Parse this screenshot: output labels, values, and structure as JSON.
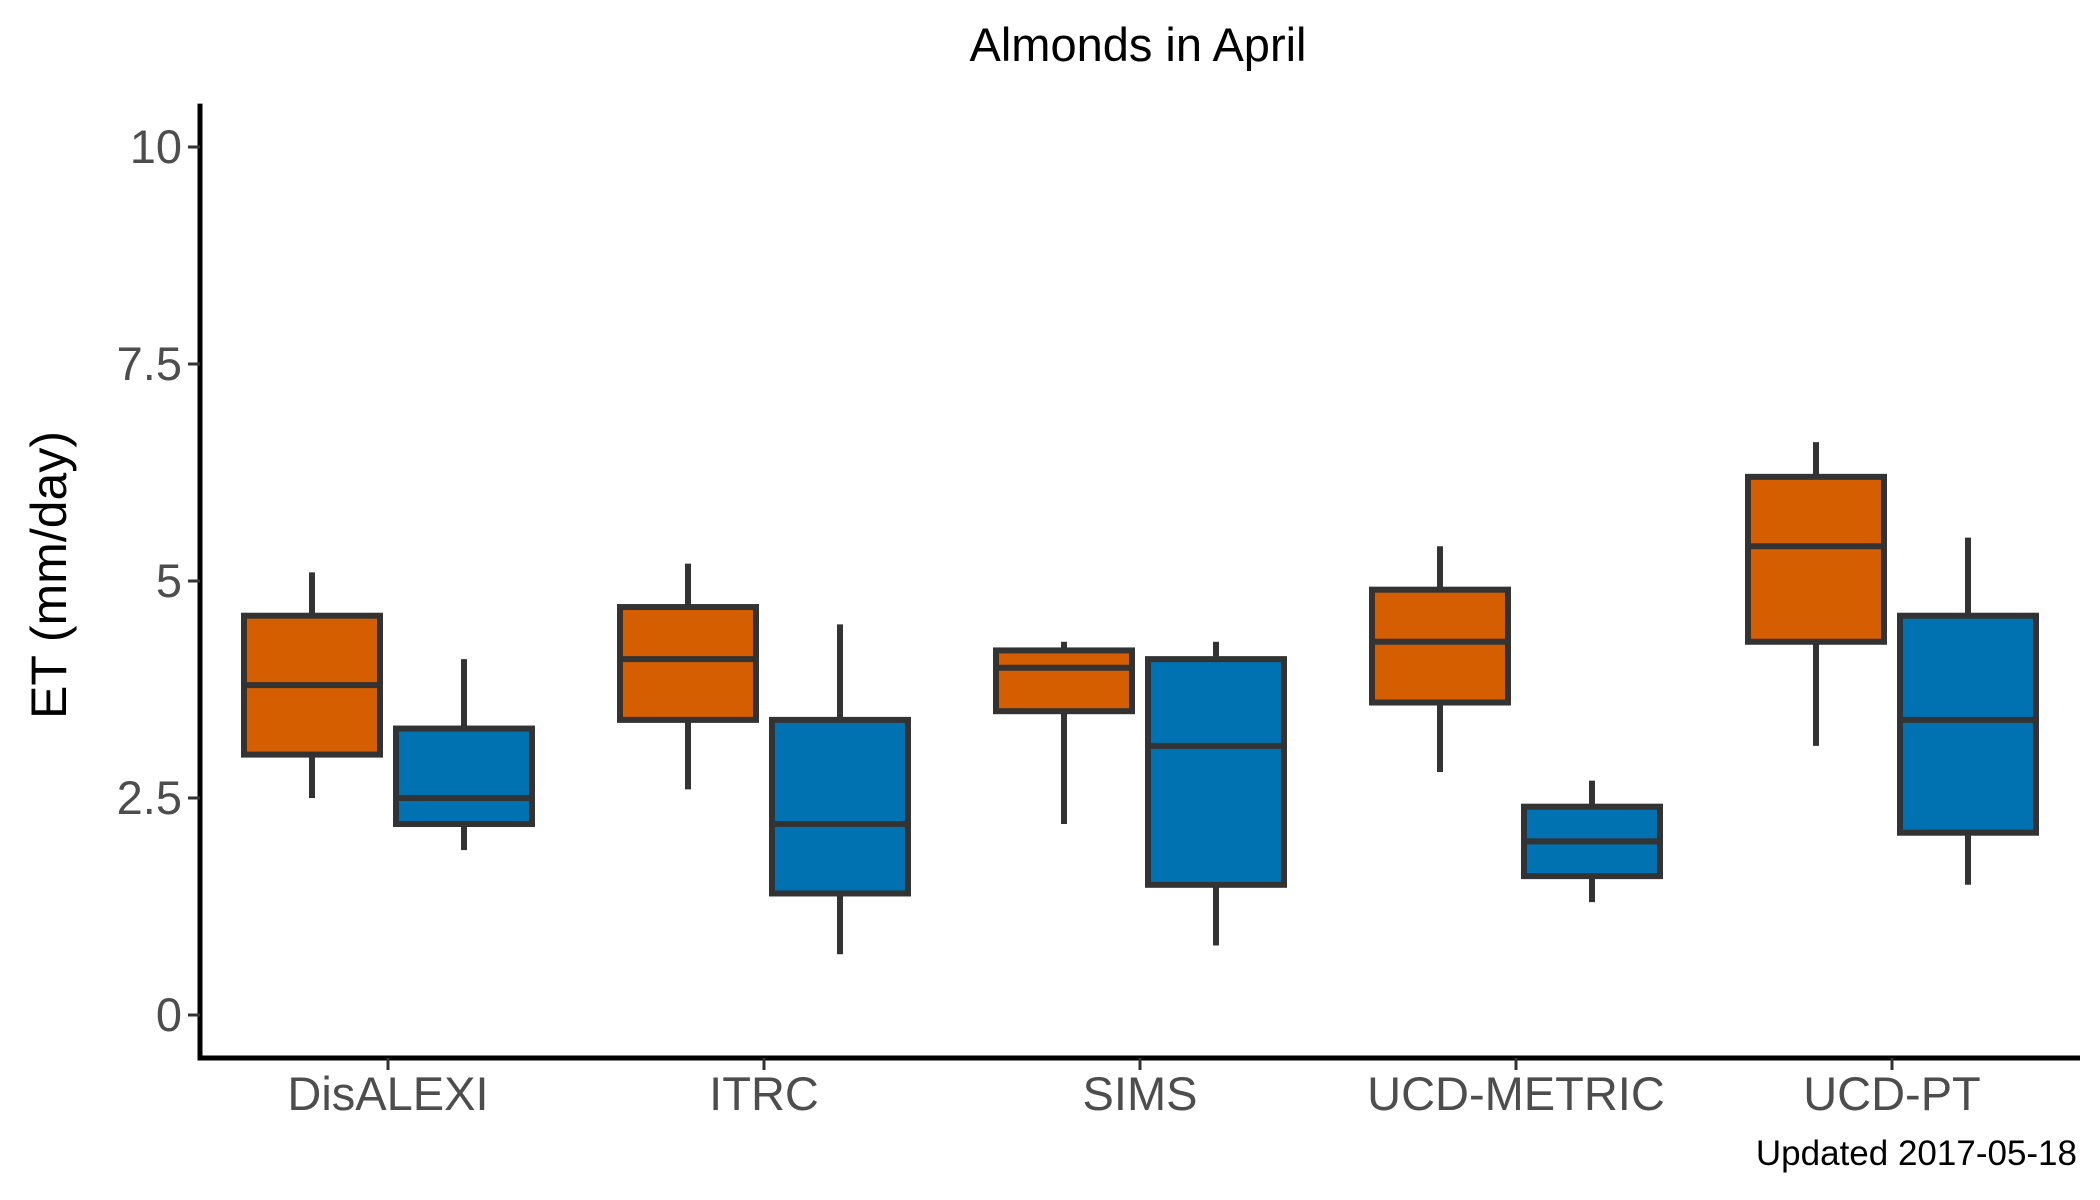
{
  "chart_data": {
    "type": "boxplot",
    "title": "Almonds in April",
    "ylabel": "ET (mm/day)",
    "xlabel": "",
    "ylim": [
      -0.5,
      10.5
    ],
    "yticks": [
      0,
      2.5,
      5,
      7.5,
      10
    ],
    "ytick_labels": [
      "0",
      "2.5",
      "5",
      "7.5",
      "10"
    ],
    "categories": [
      "DisALEXI",
      "ITRC",
      "SIMS",
      "UCD-METRIC",
      "UCD-PT"
    ],
    "grid": false,
    "legend": "none",
    "series": [
      {
        "color": "#D55E00",
        "boxes": [
          {
            "whisker_low": 2.5,
            "q1": 3.0,
            "median": 3.8,
            "q3": 4.6,
            "whisker_high": 5.1
          },
          {
            "whisker_low": 2.6,
            "q1": 3.4,
            "median": 4.1,
            "q3": 4.7,
            "whisker_high": 5.2
          },
          {
            "whisker_low": 2.2,
            "q1": 3.5,
            "median": 4.0,
            "q3": 4.2,
            "whisker_high": 4.3
          },
          {
            "whisker_low": 2.8,
            "q1": 3.6,
            "median": 4.3,
            "q3": 4.9,
            "whisker_high": 5.4
          },
          {
            "whisker_low": 3.1,
            "q1": 4.3,
            "median": 5.4,
            "q3": 6.2,
            "whisker_high": 6.6
          }
        ]
      },
      {
        "color": "#0072B2",
        "boxes": [
          {
            "whisker_low": 1.9,
            "q1": 2.2,
            "median": 2.5,
            "q3": 3.3,
            "whisker_high": 4.1
          },
          {
            "whisker_low": 0.7,
            "q1": 1.4,
            "median": 2.2,
            "q3": 3.4,
            "whisker_high": 4.5
          },
          {
            "whisker_low": 0.8,
            "q1": 1.5,
            "median": 3.1,
            "q3": 4.1,
            "whisker_high": 4.3
          },
          {
            "whisker_low": 1.3,
            "q1": 1.6,
            "median": 2.0,
            "q3": 2.4,
            "whisker_high": 2.7
          },
          {
            "whisker_low": 1.5,
            "q1": 2.1,
            "median": 3.4,
            "q3": 4.6,
            "whisker_high": 5.5
          }
        ]
      }
    ],
    "caption": "Updated  2017-05-18",
    "outline_color": "#333333"
  }
}
